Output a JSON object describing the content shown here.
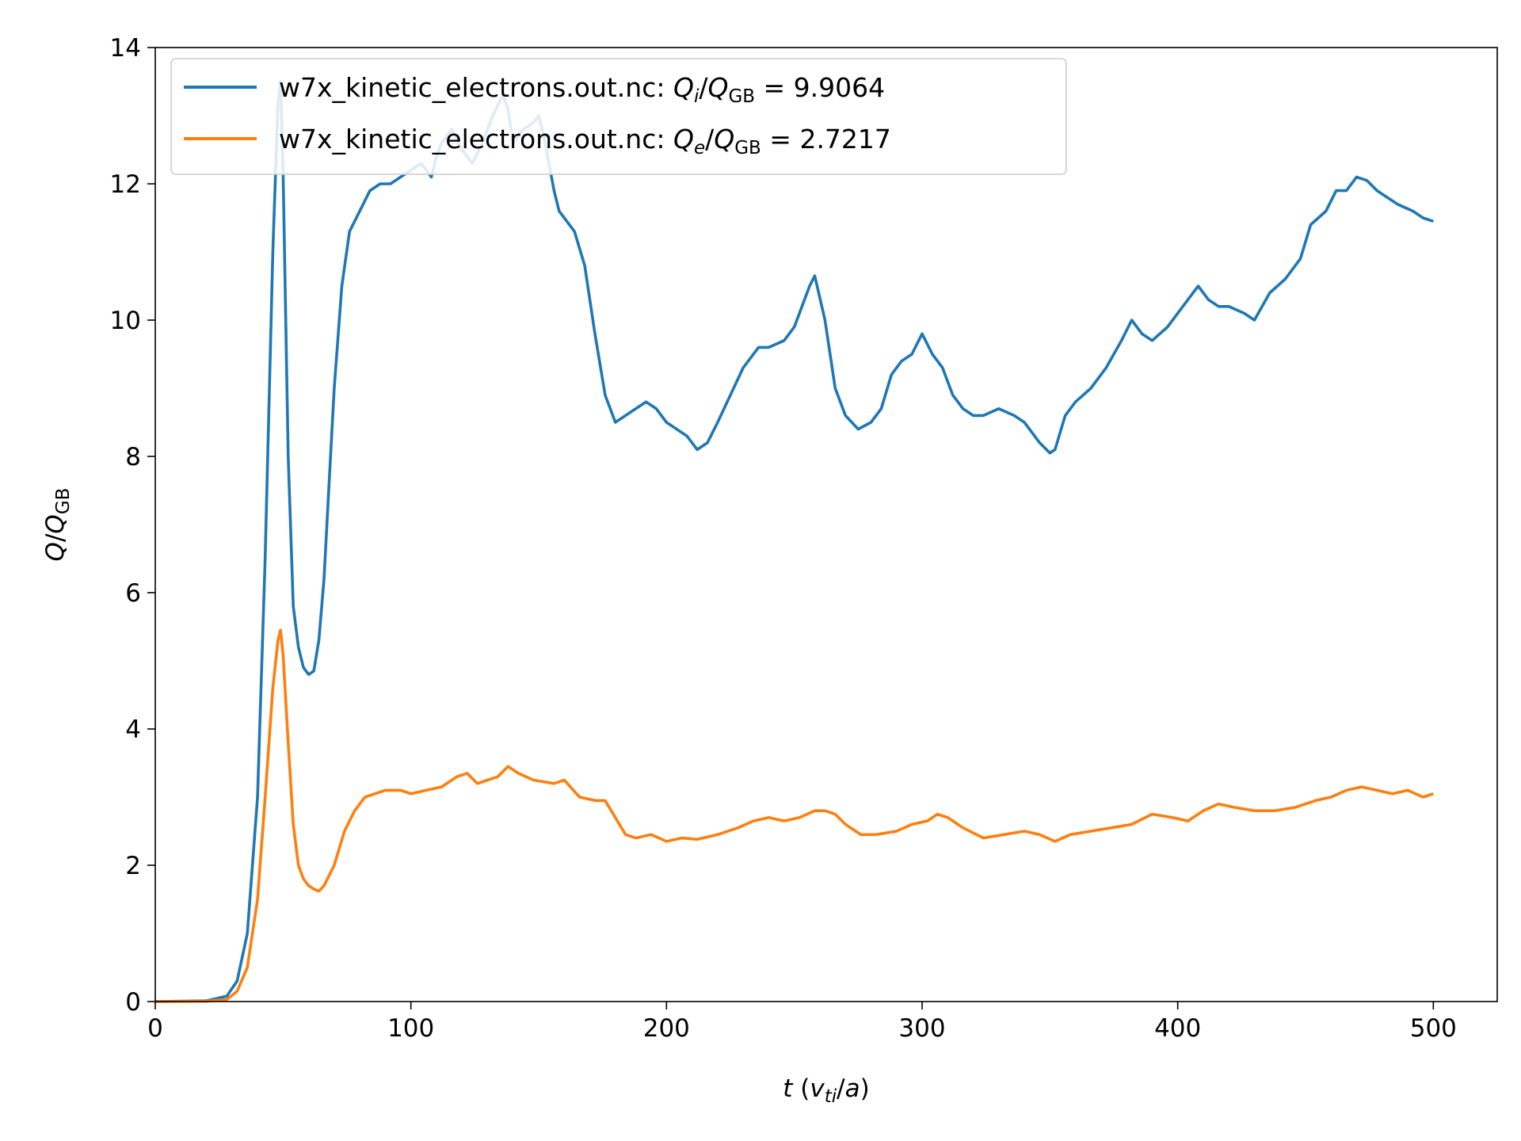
{
  "chart_data": {
    "type": "line",
    "xlabel": {
      "var": "t",
      "open": " (",
      "num": "v",
      "num_sub": "ti",
      "slash": "/",
      "den": "a",
      "close": ")"
    },
    "ylabel": {
      "num": "Q",
      "slash": "/",
      "den": "Q",
      "den_sub": "GB"
    },
    "xlim": [
      0,
      525
    ],
    "ylim": [
      0,
      14
    ],
    "xticks": [
      "0",
      "100",
      "200",
      "300",
      "400",
      "500"
    ],
    "xtick_values": [
      0,
      100,
      200,
      300,
      400,
      500
    ],
    "yticks": [
      "0",
      "2",
      "4",
      "6",
      "8",
      "10",
      "12",
      "14"
    ],
    "ytick_values": [
      0,
      2,
      4,
      6,
      8,
      10,
      12,
      14
    ],
    "grid": false,
    "legend_position": "top-left",
    "series": [
      {
        "legend": {
          "file": "w7x_kinetic_electrons.out.nc: ",
          "q": "Q",
          "q_sub": "i",
          "slash": "/",
          "den": "Q",
          "den_sub": "GB",
          "eq": " = 9.9064"
        },
        "color": "#1f77b4",
        "x": [
          0,
          20,
          28,
          32,
          36,
          40,
          43,
          46,
          48,
          49,
          50,
          52,
          54,
          56,
          58,
          60,
          62,
          64,
          66,
          68,
          70,
          73,
          76,
          80,
          84,
          88,
          92,
          96,
          100,
          104,
          108,
          110,
          112,
          116,
          120,
          124,
          128,
          132,
          136,
          138,
          140,
          144,
          148,
          150,
          152,
          156,
          158,
          160,
          164,
          168,
          172,
          176,
          180,
          184,
          188,
          192,
          196,
          200,
          204,
          208,
          212,
          216,
          220,
          225,
          230,
          236,
          240,
          246,
          250,
          256,
          258,
          262,
          266,
          270,
          275,
          280,
          284,
          288,
          292,
          296,
          300,
          304,
          308,
          312,
          316,
          320,
          324,
          330,
          336,
          340,
          346,
          350,
          352,
          356,
          360,
          366,
          372,
          378,
          382,
          386,
          390,
          396,
          402,
          408,
          412,
          416,
          420,
          426,
          430,
          436,
          442,
          448,
          452,
          458,
          462,
          466,
          470,
          474,
          478,
          482,
          486,
          492,
          496,
          500
        ],
        "y": [
          0,
          0.01,
          0.08,
          0.3,
          1.0,
          3.0,
          6.5,
          11.0,
          13.2,
          13.5,
          12.2,
          8.0,
          5.8,
          5.2,
          4.9,
          4.8,
          4.85,
          5.3,
          6.2,
          7.6,
          9.0,
          10.5,
          11.3,
          11.6,
          11.9,
          12.0,
          12.0,
          12.1,
          12.2,
          12.3,
          12.1,
          12.4,
          12.6,
          12.8,
          12.5,
          12.3,
          12.6,
          13.0,
          13.3,
          13.1,
          12.6,
          12.8,
          12.9,
          13.0,
          12.7,
          11.9,
          11.6,
          11.5,
          11.3,
          10.8,
          9.8,
          8.9,
          8.5,
          8.6,
          8.7,
          8.8,
          8.7,
          8.5,
          8.4,
          8.3,
          8.1,
          8.2,
          8.5,
          8.9,
          9.3,
          9.6,
          9.6,
          9.7,
          9.9,
          10.5,
          10.65,
          10.0,
          9.0,
          8.6,
          8.4,
          8.5,
          8.7,
          9.2,
          9.4,
          9.5,
          9.8,
          9.5,
          9.3,
          8.9,
          8.7,
          8.6,
          8.6,
          8.7,
          8.6,
          8.5,
          8.2,
          8.05,
          8.1,
          8.6,
          8.8,
          9.0,
          9.3,
          9.7,
          10.0,
          9.8,
          9.7,
          9.9,
          10.2,
          10.5,
          10.3,
          10.2,
          10.2,
          10.1,
          10.0,
          10.4,
          10.6,
          10.9,
          11.4,
          11.6,
          11.9,
          11.9,
          12.1,
          12.05,
          11.9,
          11.8,
          11.7,
          11.6,
          11.5,
          11.45
        ]
      },
      {
        "legend": {
          "file": "w7x_kinetic_electrons.out.nc: ",
          "q": "Q",
          "q_sub": "e",
          "slash": "/",
          "den": "Q",
          "den_sub": "GB",
          "eq": " = 2.7217"
        },
        "color": "#ff7f0e",
        "x": [
          0,
          20,
          28,
          32,
          36,
          40,
          43,
          46,
          48,
          49,
          50,
          52,
          54,
          56,
          58,
          60,
          62,
          64,
          66,
          70,
          74,
          78,
          82,
          86,
          90,
          96,
          100,
          106,
          112,
          118,
          122,
          126,
          130,
          134,
          138,
          142,
          148,
          156,
          160,
          166,
          172,
          176,
          180,
          184,
          188,
          194,
          200,
          206,
          212,
          220,
          228,
          234,
          240,
          246,
          252,
          258,
          262,
          266,
          270,
          276,
          282,
          290,
          296,
          302,
          306,
          310,
          316,
          324,
          332,
          340,
          346,
          352,
          358,
          366,
          374,
          382,
          390,
          398,
          404,
          410,
          416,
          422,
          430,
          438,
          446,
          454,
          460,
          466,
          472,
          478,
          484,
          490,
          496,
          500
        ],
        "y": [
          0,
          0.005,
          0.03,
          0.15,
          0.5,
          1.5,
          3.0,
          4.6,
          5.3,
          5.45,
          5.1,
          3.8,
          2.6,
          2.0,
          1.8,
          1.7,
          1.65,
          1.62,
          1.7,
          2.0,
          2.5,
          2.8,
          3.0,
          3.05,
          3.1,
          3.1,
          3.05,
          3.1,
          3.15,
          3.3,
          3.35,
          3.2,
          3.25,
          3.3,
          3.45,
          3.35,
          3.25,
          3.2,
          3.25,
          3.0,
          2.95,
          2.95,
          2.7,
          2.45,
          2.4,
          2.45,
          2.35,
          2.4,
          2.38,
          2.45,
          2.55,
          2.65,
          2.7,
          2.65,
          2.7,
          2.8,
          2.8,
          2.75,
          2.6,
          2.45,
          2.45,
          2.5,
          2.6,
          2.65,
          2.75,
          2.7,
          2.55,
          2.4,
          2.45,
          2.5,
          2.45,
          2.35,
          2.45,
          2.5,
          2.55,
          2.6,
          2.75,
          2.7,
          2.65,
          2.8,
          2.9,
          2.85,
          2.8,
          2.8,
          2.85,
          2.95,
          3.0,
          3.1,
          3.15,
          3.1,
          3.05,
          3.1,
          3.0,
          3.05
        ]
      }
    ]
  }
}
